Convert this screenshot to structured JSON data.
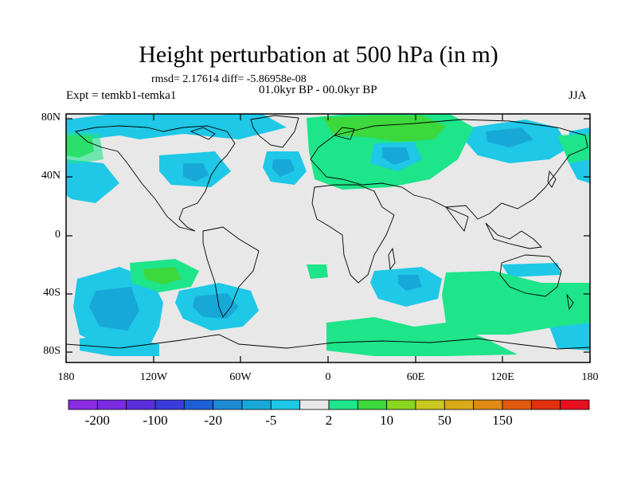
{
  "title": "Height perturbation at 500 hPa (in m)",
  "stats_text": "rmsd= 2.17614 diff= -5.86958e-08",
  "period_text": "01.0kyr BP - 00.0kyr BP",
  "expt_text": "Expt = temkb1-temka1",
  "season": "JJA",
  "lat_ticks": [
    "80N",
    "40N",
    "0",
    "40S",
    "80S"
  ],
  "lon_ticks": [
    "180",
    "120W",
    "60W",
    "0",
    "60E",
    "120E",
    "180"
  ],
  "colorbar": {
    "colors": [
      "#8a2be2",
      "#7b2be2",
      "#5a2edc",
      "#3b3bdc",
      "#1e5fd8",
      "#1e8ad4",
      "#18a8d8",
      "#1ec8e6",
      "#e8e8e8",
      "#1ee48a",
      "#3cd83c",
      "#8ad61e",
      "#c8c81e",
      "#d8aa18",
      "#e08a14",
      "#e05a10",
      "#e03010",
      "#e8101e"
    ],
    "labels": [
      "-200",
      "-100",
      "-20",
      "-5",
      "2",
      "10",
      "50",
      "150"
    ]
  }
}
